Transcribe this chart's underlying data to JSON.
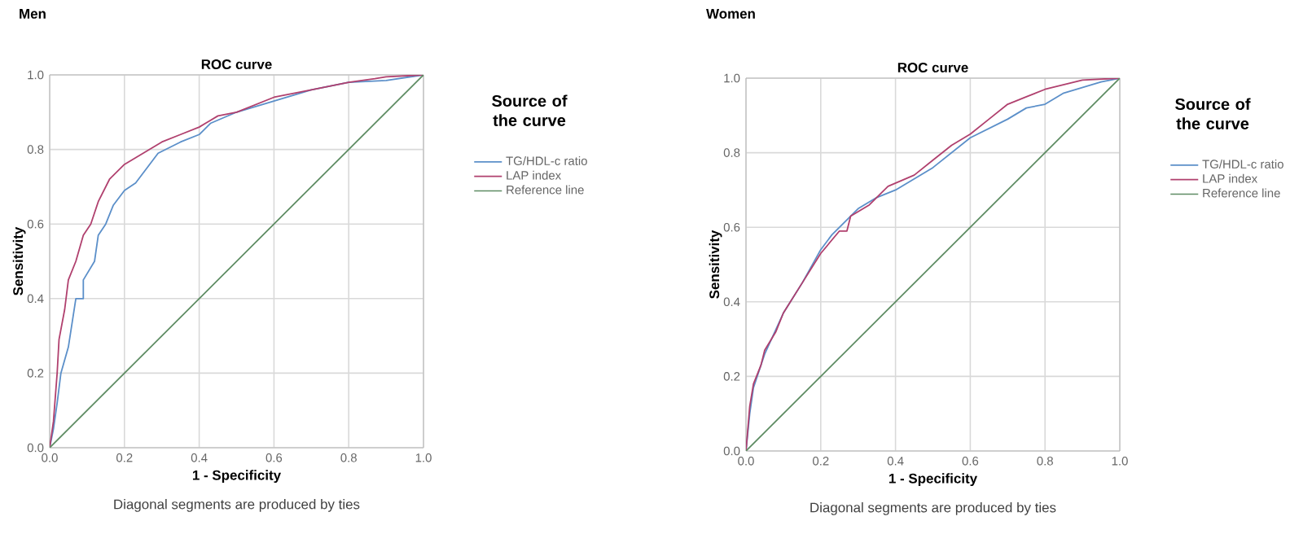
{
  "chart_data": [
    {
      "type": "line",
      "title": "Men",
      "subtitle": "ROC curve",
      "xlabel": "1 - Specificity",
      "ylabel": "Sensitivity",
      "legend_title": "Source of the curve",
      "annotations": [
        "Diagonal segments are produced by ties"
      ],
      "xlim": [
        0,
        1
      ],
      "ylim": [
        0,
        1
      ],
      "xticks": [
        {
          "value": 0,
          "label": "0.0"
        },
        {
          "value": 0.2,
          "label": "0.2"
        },
        {
          "value": 0.4,
          "label": "0.4"
        },
        {
          "value": 0.6,
          "label": "0.6"
        },
        {
          "value": 0.8,
          "label": "0.8"
        },
        {
          "value": 1,
          "label": "1.0"
        }
      ],
      "yticks": [
        {
          "value": 0,
          "label": "0.0"
        },
        {
          "value": 0.2,
          "label": "0.2"
        },
        {
          "value": 0.4,
          "label": "0.4"
        },
        {
          "value": 0.6,
          "label": "0.6"
        },
        {
          "value": 0.8,
          "label": "0.8"
        },
        {
          "value": 1,
          "label": "1.0"
        }
      ],
      "grid": true,
      "legend": "right",
      "marker": "none",
      "series": [
        {
          "name": "TG/HDL-c ratio",
          "color": "#5b8fc9",
          "x": [
            0,
            0.01,
            0.02,
            0.03,
            0.05,
            0.07,
            0.09,
            0.09,
            0.12,
            0.13,
            0.15,
            0.17,
            0.2,
            0.23,
            0.26,
            0.29,
            0.35,
            0.4,
            0.43,
            0.5,
            0.6,
            0.7,
            0.8,
            0.9,
            1
          ],
          "values": [
            0,
            0.05,
            0.12,
            0.2,
            0.27,
            0.4,
            0.4,
            0.45,
            0.5,
            0.57,
            0.6,
            0.65,
            0.69,
            0.71,
            0.75,
            0.79,
            0.82,
            0.84,
            0.87,
            0.9,
            0.93,
            0.96,
            0.98,
            0.985,
            1
          ]
        },
        {
          "name": "LAP index",
          "color": "#b0406e",
          "x": [
            0,
            0.01,
            0.02,
            0.025,
            0.04,
            0.05,
            0.07,
            0.09,
            0.11,
            0.13,
            0.16,
            0.2,
            0.25,
            0.3,
            0.35,
            0.4,
            0.45,
            0.5,
            0.6,
            0.7,
            0.8,
            0.87,
            0.9,
            1
          ],
          "values": [
            0,
            0.07,
            0.2,
            0.29,
            0.37,
            0.45,
            0.5,
            0.57,
            0.6,
            0.66,
            0.72,
            0.76,
            0.79,
            0.82,
            0.84,
            0.86,
            0.89,
            0.9,
            0.94,
            0.96,
            0.98,
            0.99,
            0.995,
            1
          ]
        },
        {
          "name": "Reference line",
          "color": "#5e8c63",
          "x": [
            0,
            1
          ],
          "values": [
            0,
            1
          ]
        }
      ]
    },
    {
      "type": "line",
      "title": "Women",
      "subtitle": "ROC curve",
      "xlabel": "1 - Specificity",
      "ylabel": "Sensitivity",
      "legend_title": "Source of the curve",
      "annotations": [
        "Diagonal segments are produced by ties"
      ],
      "xlim": [
        0,
        1
      ],
      "ylim": [
        0,
        1
      ],
      "xticks": [
        {
          "value": 0,
          "label": "0.0"
        },
        {
          "value": 0.2,
          "label": "0.2"
        },
        {
          "value": 0.4,
          "label": "0.4"
        },
        {
          "value": 0.6,
          "label": "0.6"
        },
        {
          "value": 0.8,
          "label": "0.8"
        },
        {
          "value": 1,
          "label": "1.0"
        }
      ],
      "yticks": [
        {
          "value": 0,
          "label": "0.0"
        },
        {
          "value": 0.2,
          "label": "0.2"
        },
        {
          "value": 0.4,
          "label": "0.4"
        },
        {
          "value": 0.6,
          "label": "0.6"
        },
        {
          "value": 0.8,
          "label": "0.8"
        },
        {
          "value": 1,
          "label": "1.0"
        }
      ],
      "grid": true,
      "legend": "right",
      "marker": "none",
      "series": [
        {
          "name": "TG/HDL-c ratio",
          "color": "#5b8fc9",
          "x": [
            0,
            0.01,
            0.02,
            0.05,
            0.1,
            0.15,
            0.2,
            0.23,
            0.3,
            0.35,
            0.4,
            0.5,
            0.6,
            0.7,
            0.75,
            0.8,
            0.85,
            0.95,
            1
          ],
          "values": [
            0,
            0.1,
            0.17,
            0.26,
            0.37,
            0.45,
            0.54,
            0.58,
            0.65,
            0.68,
            0.7,
            0.76,
            0.84,
            0.89,
            0.92,
            0.93,
            0.96,
            0.99,
            1
          ]
        },
        {
          "name": "LAP index",
          "color": "#b0406e",
          "x": [
            0,
            0.01,
            0.02,
            0.04,
            0.05,
            0.08,
            0.1,
            0.15,
            0.2,
            0.25,
            0.27,
            0.28,
            0.33,
            0.38,
            0.45,
            0.5,
            0.55,
            0.6,
            0.65,
            0.7,
            0.75,
            0.8,
            0.9,
            1
          ],
          "values": [
            0,
            0.12,
            0.18,
            0.23,
            0.27,
            0.32,
            0.37,
            0.45,
            0.53,
            0.59,
            0.59,
            0.63,
            0.66,
            0.71,
            0.74,
            0.78,
            0.82,
            0.85,
            0.89,
            0.93,
            0.95,
            0.97,
            0.995,
            1
          ]
        },
        {
          "name": "Reference line",
          "color": "#5e8c63",
          "x": [
            0,
            1
          ],
          "values": [
            0,
            1
          ]
        }
      ]
    }
  ]
}
